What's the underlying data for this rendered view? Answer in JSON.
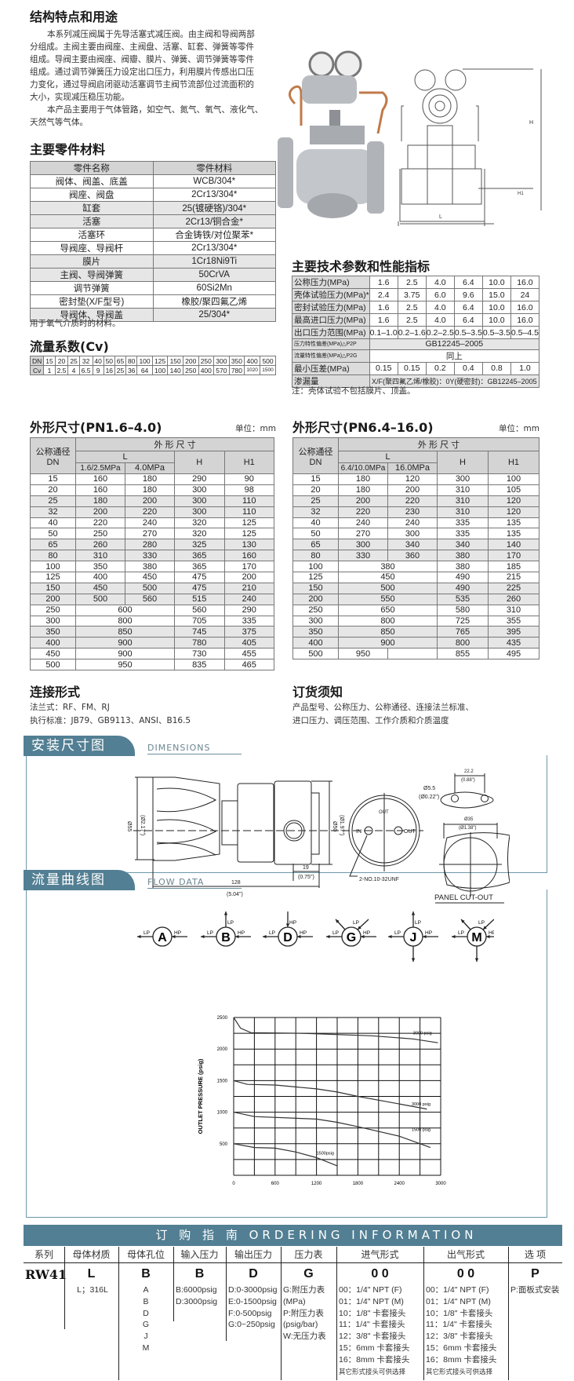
{
  "intro": {
    "title": "结构特点和用途",
    "lines": [
      "本系列减压阀属于先导活塞式减压阀。由主阀和导阀两部",
      "分组成。主阀主要由阀座、主阀盘、活塞、缸套、弹簧等零件",
      "组成。导阀主要由阀座、阀瓣、膜片、弹簧、调节弹簧等零件",
      "组成。通过调节弹簧压力设定出口压力，利用膜片传感出口压",
      "力变化，通过导阀启闭驱动活塞调节主阀节流部位过流面积的",
      "大小，实现减压稳压功能。",
      "本产品主要用于气体管路，如空气、氮气、氧气、液化气、",
      "天然气等气体。"
    ]
  },
  "materials": {
    "title": "主要零件材料",
    "headers": [
      "零件名称",
      "零件材料"
    ],
    "rows": [
      [
        "阀体、阀盖、底盖",
        "WCB/304*"
      ],
      [
        "阀座、阀盘",
        "2Cr13/304*"
      ],
      [
        "缸套",
        "25(镀硬铬)/304*"
      ],
      [
        "活塞",
        "2Cr13/铜合金*"
      ],
      [
        "活塞环",
        "合金铸铁/对位聚苯*"
      ],
      [
        "导阀座、导阀杆",
        "2Cr13/304*"
      ],
      [
        "膜片",
        "1Cr18Ni9Ti"
      ],
      [
        "主阀、导阀弹簧",
        "50CrVA"
      ],
      [
        "调节弹簧",
        "60Si2Mn"
      ],
      [
        "密封垫(X/F型号)",
        "橡胶/聚四氟乙烯"
      ],
      [
        "导阀体、导阀盖",
        "25/304*"
      ]
    ],
    "note": "用于氧气介质时的材料。"
  },
  "cv": {
    "title": "流量系数(Cv)",
    "rows": [
      [
        "DN",
        "15",
        "20",
        "25",
        "32",
        "40",
        "50",
        "65",
        "80",
        "100",
        "125",
        "150",
        "200",
        "250",
        "300",
        "350",
        "400",
        "500"
      ],
      [
        "Cv",
        "1",
        "2.5",
        "4",
        "6.5",
        "9",
        "16",
        "25",
        "36",
        "64",
        "100",
        "140",
        "250",
        "400",
        "570",
        "780",
        "1020",
        "1500"
      ]
    ]
  },
  "tech": {
    "title": "主要技术参数和性能指标",
    "rows": [
      [
        "公称压力(MPa)",
        "1.6",
        "2.5",
        "4.0",
        "6.4",
        "10.0",
        "16.0"
      ],
      [
        "壳体试验压力(MPa)*",
        "2.4",
        "3.75",
        "6.0",
        "9.6",
        "15.0",
        "24"
      ],
      [
        "密封试验压力(MPa)",
        "1.6",
        "2.5",
        "4.0",
        "6.4",
        "10.0",
        "16.0"
      ],
      [
        "最高进口压力(MPa)",
        "1.6",
        "2.5",
        "4.0",
        "6.4",
        "10.0",
        "16.0"
      ],
      [
        "出口压力范围(MPa)",
        "0.1–1.0",
        "0.2–1.6",
        "0.2–2.5",
        "0.5–3.5",
        "0.5–3.5",
        "0.5–4.5"
      ],
      [
        "压力特性偏差(MPa)△P2P",
        "GB12245–2005"
      ],
      [
        "流量特性偏差(MPa)△P2G",
        "同上"
      ],
      [
        "最小压差(MPa)",
        "0.15",
        "0.15",
        "0.2",
        "0.4",
        "0.8",
        "1.0"
      ],
      [
        "渗漏量",
        "X/F(聚四氟乙烯/橡胶)：0Y(硬密封)：GB12245–2005"
      ]
    ],
    "note": "注：壳体试验不包括膜片、顶盖。"
  },
  "dims_low": {
    "title": "外形尺寸(PN1.6–4.0)",
    "unit": "单位：mm",
    "h_dn": "公称通径",
    "h_dn2": "DN",
    "h_group": "外 形 尺 寸",
    "h_l": "L",
    "h_l1": "1.6/2.5MPa",
    "h_l2": "4.0MPa",
    "h_h": "H",
    "h_h1": "H1",
    "rows": [
      [
        "15",
        "160",
        "180",
        "290",
        "90"
      ],
      [
        "20",
        "160",
        "180",
        "300",
        "98"
      ],
      [
        "25",
        "180",
        "200",
        "300",
        "110"
      ],
      [
        "32",
        "200",
        "220",
        "300",
        "110"
      ],
      [
        "40",
        "220",
        "240",
        "320",
        "125"
      ],
      [
        "50",
        "250",
        "270",
        "320",
        "125"
      ],
      [
        "65",
        "260",
        "280",
        "325",
        "130"
      ],
      [
        "80",
        "310",
        "330",
        "365",
        "160"
      ],
      [
        "100",
        "350",
        "380",
        "365",
        "170"
      ],
      [
        "125",
        "400",
        "450",
        "475",
        "200"
      ],
      [
        "150",
        "450",
        "500",
        "475",
        "210"
      ],
      [
        "200",
        "500",
        "560",
        "515",
        "240"
      ],
      [
        "250",
        "600",
        "560",
        "290"
      ],
      [
        "300",
        "800",
        "705",
        "335"
      ],
      [
        "350",
        "850",
        "745",
        "375"
      ],
      [
        "400",
        "900",
        "780",
        "405"
      ],
      [
        "450",
        "900",
        "730",
        "455"
      ],
      [
        "500",
        "950",
        "835",
        "465"
      ]
    ]
  },
  "dims_high": {
    "title": "外形尺寸(PN6.4–16.0)",
    "unit": "单位：mm",
    "h_dn": "公称通径",
    "h_dn2": "DN",
    "h_group": "外 形 尺 寸",
    "h_l": "L",
    "h_l1": "6.4/10.0MPa",
    "h_l2": "16.0MPa",
    "h_h": "H",
    "h_h1": "H1",
    "rows": [
      [
        "15",
        "180",
        "120",
        "300",
        "100"
      ],
      [
        "20",
        "180",
        "200",
        "310",
        "105"
      ],
      [
        "25",
        "200",
        "220",
        "310",
        "120"
      ],
      [
        "32",
        "220",
        "230",
        "310",
        "120"
      ],
      [
        "40",
        "240",
        "240",
        "335",
        "135"
      ],
      [
        "50",
        "270",
        "300",
        "335",
        "135"
      ],
      [
        "65",
        "300",
        "340",
        "340",
        "140"
      ],
      [
        "80",
        "330",
        "360",
        "380",
        "170"
      ],
      [
        "100",
        "380",
        "380",
        "185"
      ],
      [
        "125",
        "450",
        "490",
        "215"
      ],
      [
        "150",
        "500",
        "490",
        "225"
      ],
      [
        "200",
        "550",
        "535",
        "260"
      ],
      [
        "250",
        "650",
        "580",
        "310"
      ],
      [
        "300",
        "800",
        "725",
        "355"
      ],
      [
        "350",
        "850",
        "765",
        "395"
      ],
      [
        "400",
        "900",
        "800",
        "435"
      ],
      [
        "500",
        "950",
        "",
        "855",
        "495"
      ]
    ]
  },
  "connection": {
    "title": "连接形式",
    "lines": [
      "法兰式：RF、FM、RJ",
      "执行标准：JB79、GB9113、ANSI、B16.5"
    ]
  },
  "ordering_notes": {
    "title": "订货须知",
    "lines": [
      "产品型号、公称压力、公称通径、连接法兰标准、",
      "进口压力、调压范围、工作介质和介质温度"
    ]
  },
  "dimensions_section": {
    "title": "安装尺寸图",
    "subtitle": "DIMENSIONS",
    "labels": {
      "d55": "Ø55",
      "d55in": "(Ø2.17\")",
      "d50": "Ø50",
      "d50in": "(Ø1.97\")",
      "l19": "19",
      "l19in": "(0.75\")",
      "l128": "128",
      "l128in": "(5.04\")",
      "in": "IN",
      "out": "OUT",
      "thread": "2-NO.10-32UNF",
      "d55h": "Ø5.5",
      "d55hin": "(Ø0.22\")",
      "l222": "22.2",
      "l222in": "(0.88\")",
      "d35": "Ø35",
      "d35in": "(Ø1.38\")",
      "panel": "PANEL CUT-OUT"
    },
    "ports": [
      {
        "letter": "A",
        "lp": "LP",
        "hp": "HP"
      },
      {
        "letter": "B",
        "lp": "LP",
        "hp": "HP"
      },
      {
        "letter": "D",
        "lp": "LP",
        "hp": "HP"
      },
      {
        "letter": "G",
        "lp": "LP",
        "hp": "HP"
      },
      {
        "letter": "J",
        "lp": "LP",
        "hp": "HP"
      },
      {
        "letter": "M",
        "lp": "LP",
        "hp": "HP"
      }
    ]
  },
  "flow_section": {
    "title": "流量曲线图",
    "subtitle": "FLOW DATA"
  },
  "chart_data": {
    "type": "line",
    "title": "",
    "xlabel": "FLOW RATE SCFH (AIR)",
    "ylabel": "OUTLET PRESSURE (psig)",
    "xlim": [
      0,
      3000
    ],
    "ylim": [
      0,
      2500
    ],
    "xticks": [
      "0",
      "600",
      "1200",
      "1800",
      "2400",
      "3000"
    ],
    "yticks": [
      "500",
      "1000",
      "1500",
      "2000",
      "2500"
    ],
    "grid": true,
    "series": [
      {
        "name": "3000 psig",
        "x": [
          0,
          100,
          250,
          1000,
          2000,
          2600,
          2960
        ],
        "y": [
          2500,
          2330,
          2260,
          2250,
          2210,
          2160,
          2100
        ]
      },
      {
        "name": "3000 psig",
        "x": [
          0,
          200,
          600,
          1200,
          1500,
          1800,
          2400,
          2800
        ],
        "y": [
          1500,
          1440,
          1430,
          1370,
          1320,
          1250,
          1130,
          1050
        ]
      },
      {
        "name": "1500 psig",
        "x": [
          0,
          300,
          1200,
          1500,
          1800,
          2400,
          2850
        ],
        "y": [
          1000,
          930,
          890,
          840,
          770,
          620,
          440
        ]
      },
      {
        "name": "1500psig",
        "x": [
          0,
          300,
          600,
          900,
          1200,
          1500
        ],
        "y": [
          500,
          440,
          430,
          370,
          280,
          150
        ]
      }
    ]
  },
  "ordering": {
    "title": "订 购 指 南    ORDERING  INFORMATION",
    "columns": [
      {
        "header": "系列",
        "code": "RW41",
        "lines": []
      },
      {
        "header": "母体材质",
        "code": "L",
        "lines": [
          "L；316L"
        ]
      },
      {
        "header": "母体孔位",
        "code": "B",
        "lines": [
          "A",
          "B",
          "D",
          "G",
          "J",
          "M"
        ]
      },
      {
        "header": "输入压力",
        "code": "B",
        "lines": [
          "B:6000psig",
          "D:3000psig"
        ]
      },
      {
        "header": "输出压力",
        "code": "D",
        "lines": [
          "D:0-3000psig",
          "E:0-1500psig",
          "F:0-500psig",
          "G:0~250psig"
        ]
      },
      {
        "header": "压力表",
        "code": "G",
        "lines": [
          "G:附压力表",
          "(MPa)",
          "P:附压力表",
          "(psig/bar)",
          "W:无压力表"
        ]
      },
      {
        "header": "进气形式",
        "code": "0 0",
        "lines": [
          "00：1/4\" NPT (F)",
          "01：1/4\" NPT (M)",
          "10：1/8\" 卡套接头",
          "11：1/4\" 卡套接头",
          "12：3/8\" 卡套接头",
          "15：6mm 卡套接头",
          "16：8mm 卡套接头",
          "其它形式接头可供选择"
        ]
      },
      {
        "header": "出气形式",
        "code": "0 0",
        "lines": [
          "00：1/4\" NPT (F)",
          "01：1/4\" NPT (M)",
          "10：1/8\" 卡套接头",
          "11：1/4\" 卡套接头",
          "12：3/8\" 卡套接头",
          "15：6mm 卡套接头",
          "16：8mm 卡套接头",
          "其它形式接头可供选择"
        ]
      },
      {
        "header": "选 项",
        "code": "P",
        "lines": [
          "P:面板式安装"
        ]
      }
    ]
  },
  "colors": {
    "accent": "#527f93",
    "table_header": "#d4d4d4",
    "row_shade": "#e6e6e6"
  }
}
